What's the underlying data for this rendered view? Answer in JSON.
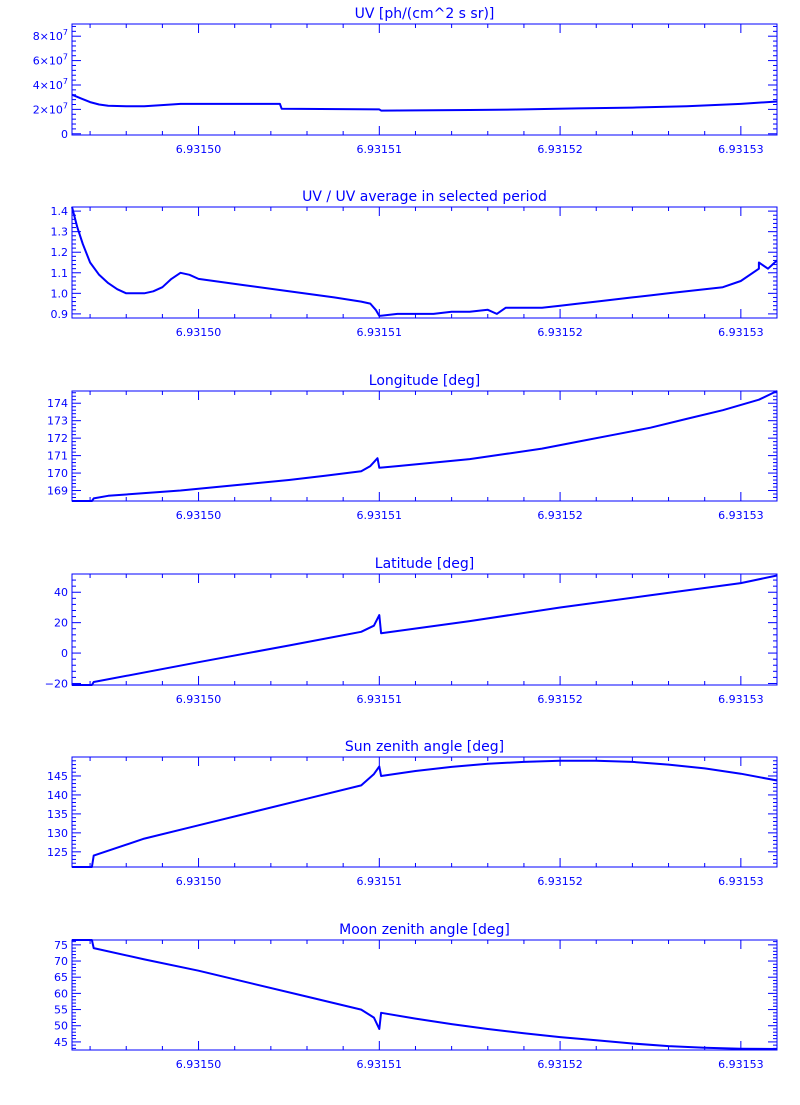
{
  "figure": {
    "line_color": "#0000ff",
    "background": "#ffffff"
  },
  "chart_data": [
    {
      "type": "line",
      "title": "UV [ph/(cm^2 s sr)]",
      "xlim": [
        6.931493,
        6.931532
      ],
      "ylim": [
        -1000000,
        90000000
      ],
      "x_ticks": [
        6.9315,
        6.93151,
        6.93152,
        6.93153
      ],
      "x_tick_labels": [
        "6.93150",
        "6.93151",
        "6.93152",
        "6.93153"
      ],
      "y_ticks": [
        0,
        20000000,
        40000000,
        60000000,
        80000000
      ],
      "y_tick_labels": [
        {
          "base": "0",
          "exp": ""
        },
        {
          "base": "2×10",
          "exp": "7"
        },
        {
          "base": "4×10",
          "exp": "7"
        },
        {
          "base": "6×10",
          "exp": "7"
        },
        {
          "base": "8×10",
          "exp": "7"
        }
      ],
      "series": [
        {
          "x": [
            6.931493,
            6.9314935,
            6.931494,
            6.9314945,
            6.931495,
            6.9314955,
            6.931496,
            6.931497,
            6.9314985,
            6.931499,
            6.931501,
            6.9315045,
            6.9315046,
            6.93151,
            6.9315101,
            6.931512,
            6.931515,
            6.931518,
            6.931521,
            6.931524,
            6.931527,
            6.93153,
            6.931532
          ],
          "y": [
            32000000,
            29000000,
            26000000,
            24000000,
            23000000,
            22800000,
            22500000,
            22500000,
            24000000,
            24500000,
            24500000,
            24500000,
            20500000,
            20000000,
            19000000,
            19200000,
            19500000,
            20000000,
            20800000,
            21500000,
            22500000,
            24500000,
            26500000
          ]
        }
      ]
    },
    {
      "type": "line",
      "title": "UV / UV average in selected period",
      "xlim": [
        6.931493,
        6.931532
      ],
      "ylim": [
        0.88,
        1.42
      ],
      "x_ticks": [
        6.9315,
        6.93151,
        6.93152,
        6.93153
      ],
      "x_tick_labels": [
        "6.93150",
        "6.93151",
        "6.93152",
        "6.93153"
      ],
      "y_ticks": [
        0.9,
        1.0,
        1.1,
        1.2,
        1.3,
        1.4
      ],
      "y_tick_labels": [
        {
          "base": "0.9",
          "exp": ""
        },
        {
          "base": "1.0",
          "exp": ""
        },
        {
          "base": "1.1",
          "exp": ""
        },
        {
          "base": "1.2",
          "exp": ""
        },
        {
          "base": "1.3",
          "exp": ""
        },
        {
          "base": "1.4",
          "exp": ""
        }
      ],
      "series": [
        {
          "x": [
            6.931493,
            6.9314933,
            6.9314936,
            6.931494,
            6.9314945,
            6.931495,
            6.9314955,
            6.931496,
            6.9314965,
            6.931497,
            6.9314975,
            6.931498,
            6.9314985,
            6.931499,
            6.9314995,
            6.9315,
            6.9315025,
            6.931505,
            6.9315075,
            6.931509,
            6.9315095,
            6.9315098,
            6.93151,
            6.931511,
            6.931512,
            6.931513,
            6.931514,
            6.931515,
            6.931516,
            6.9315165,
            6.931517,
            6.931518,
            6.931519,
            6.93152,
            6.931521,
            6.931522,
            6.931523,
            6.931524,
            6.931525,
            6.931526,
            6.931527,
            6.931528,
            6.931529,
            6.93153,
            6.931531,
            6.931531,
            6.9315315,
            6.931532
          ],
          "y": [
            1.42,
            1.32,
            1.24,
            1.15,
            1.09,
            1.05,
            1.02,
            1.0,
            1.0,
            1.0,
            1.01,
            1.03,
            1.07,
            1.1,
            1.09,
            1.07,
            1.04,
            1.01,
            0.98,
            0.96,
            0.95,
            0.92,
            0.89,
            0.9,
            0.9,
            0.9,
            0.91,
            0.91,
            0.92,
            0.9,
            0.93,
            0.93,
            0.93,
            0.94,
            0.95,
            0.96,
            0.97,
            0.98,
            0.99,
            1.0,
            1.01,
            1.02,
            1.03,
            1.06,
            1.12,
            1.15,
            1.12,
            1.16
          ]
        }
      ]
    },
    {
      "type": "line",
      "title": "Longitude [deg]",
      "xlim": [
        6.931493,
        6.931532
      ],
      "ylim": [
        168.4,
        174.7
      ],
      "x_ticks": [
        6.9315,
        6.93151,
        6.93152,
        6.93153
      ],
      "x_tick_labels": [
        "6.93150",
        "6.93151",
        "6.93152",
        "6.93153"
      ],
      "y_ticks": [
        169,
        170,
        171,
        172,
        173,
        174
      ],
      "y_tick_labels": [
        {
          "base": "169",
          "exp": ""
        },
        {
          "base": "170",
          "exp": ""
        },
        {
          "base": "171",
          "exp": ""
        },
        {
          "base": "172",
          "exp": ""
        },
        {
          "base": "173",
          "exp": ""
        },
        {
          "base": "174",
          "exp": ""
        }
      ],
      "series": [
        {
          "x": [
            6.931493,
            6.9314941,
            6.9314942,
            6.931495,
            6.931497,
            6.931499,
            6.931501,
            6.931503,
            6.931505,
            6.931507,
            6.931509,
            6.9315095,
            6.9315099,
            6.93151,
            6.931511,
            6.931513,
            6.931515,
            6.931517,
            6.931519,
            6.931521,
            6.931523,
            6.931525,
            6.931527,
            6.931529,
            6.931531,
            6.931532
          ],
          "y": [
            168.4,
            168.4,
            168.55,
            168.7,
            168.85,
            169.0,
            169.2,
            169.4,
            169.6,
            169.85,
            170.1,
            170.4,
            170.85,
            170.3,
            170.4,
            170.6,
            170.8,
            171.1,
            171.4,
            171.8,
            172.2,
            172.6,
            173.1,
            173.6,
            174.2,
            174.7
          ]
        }
      ]
    },
    {
      "type": "line",
      "title": "Latitude [deg]",
      "xlim": [
        6.931493,
        6.931532
      ],
      "ylim": [
        -21,
        52
      ],
      "x_ticks": [
        6.9315,
        6.93151,
        6.93152,
        6.93153
      ],
      "x_tick_labels": [
        "6.93150",
        "6.93151",
        "6.93152",
        "6.93153"
      ],
      "y_ticks": [
        -20,
        0,
        20,
        40
      ],
      "y_tick_labels": [
        {
          "base": "−20",
          "exp": ""
        },
        {
          "base": "0",
          "exp": ""
        },
        {
          "base": "20",
          "exp": ""
        },
        {
          "base": "40",
          "exp": ""
        }
      ],
      "series": [
        {
          "x": [
            6.931493,
            6.9314941,
            6.9314942,
            6.9315,
            6.931505,
            6.931509,
            6.9315097,
            6.93151,
            6.9315101,
            6.931515,
            6.93152,
            6.931525,
            6.93153,
            6.931532
          ],
          "y": [
            -21,
            -21,
            -19,
            -6,
            5,
            14,
            18,
            25,
            13,
            21,
            30,
            38,
            46,
            51
          ]
        }
      ]
    },
    {
      "type": "line",
      "title": "Sun zenith angle [deg]",
      "xlim": [
        6.931493,
        6.931532
      ],
      "ylim": [
        121,
        150
      ],
      "x_ticks": [
        6.9315,
        6.93151,
        6.93152,
        6.93153
      ],
      "x_tick_labels": [
        "6.93150",
        "6.93151",
        "6.93152",
        "6.93153"
      ],
      "y_ticks": [
        125,
        130,
        135,
        140,
        145
      ],
      "y_tick_labels": [
        {
          "base": "125",
          "exp": ""
        },
        {
          "base": "130",
          "exp": ""
        },
        {
          "base": "135",
          "exp": ""
        },
        {
          "base": "140",
          "exp": ""
        },
        {
          "base": "145",
          "exp": ""
        }
      ],
      "series": [
        {
          "x": [
            6.931493,
            6.9314941,
            6.9314942,
            6.931497,
            6.9315,
            6.931503,
            6.931506,
            6.931509,
            6.9315097,
            6.93151,
            6.9315101,
            6.931512,
            6.931514,
            6.931516,
            6.931518,
            6.93152,
            6.931522,
            6.931524,
            6.931526,
            6.931528,
            6.93153,
            6.931532
          ],
          "y": [
            121,
            121,
            124,
            128.5,
            132,
            135.5,
            139,
            142.5,
            145.5,
            147.5,
            145,
            146.3,
            147.4,
            148.2,
            148.7,
            149,
            149,
            148.7,
            148,
            147,
            145.6,
            143.8
          ]
        }
      ]
    },
    {
      "type": "line",
      "title": "Moon zenith angle [deg]",
      "xlim": [
        6.931493,
        6.931532
      ],
      "ylim": [
        42.5,
        76.5
      ],
      "x_ticks": [
        6.9315,
        6.93151,
        6.93152,
        6.93153
      ],
      "x_tick_labels": [
        "6.93150",
        "6.93151",
        "6.93152",
        "6.93153"
      ],
      "y_ticks": [
        45,
        50,
        55,
        60,
        65,
        70,
        75
      ],
      "y_tick_labels": [
        {
          "base": "45",
          "exp": ""
        },
        {
          "base": "50",
          "exp": ""
        },
        {
          "base": "55",
          "exp": ""
        },
        {
          "base": "60",
          "exp": ""
        },
        {
          "base": "65",
          "exp": ""
        },
        {
          "base": "70",
          "exp": ""
        },
        {
          "base": "75",
          "exp": ""
        }
      ],
      "series": [
        {
          "x": [
            6.931493,
            6.9314941,
            6.9314942,
            6.931497,
            6.9315,
            6.931503,
            6.931506,
            6.931509,
            6.9315097,
            6.93151,
            6.9315101,
            6.931512,
            6.931514,
            6.931516,
            6.931518,
            6.93152,
            6.931522,
            6.931524,
            6.931526,
            6.931528,
            6.93153,
            6.931532
          ],
          "y": [
            76.5,
            76.5,
            74,
            70.5,
            67,
            63,
            59,
            55,
            52.5,
            49,
            54,
            52.2,
            50.5,
            49,
            47.7,
            46.5,
            45.5,
            44.5,
            43.7,
            43.2,
            42.9,
            42.8
          ]
        }
      ]
    }
  ]
}
